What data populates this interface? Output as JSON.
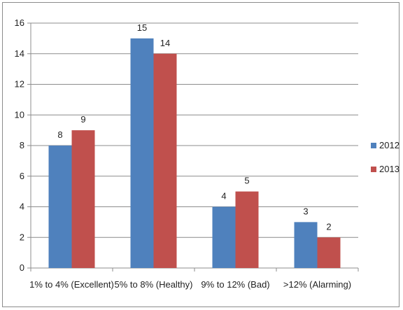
{
  "chart_data": {
    "type": "bar",
    "categories": [
      "1% to 4% (Excellent)",
      "5% to 8% (Healthy)",
      "9% to 12% (Bad)",
      ">12% (Alarming)"
    ],
    "series": [
      {
        "name": "2012",
        "values": [
          8,
          15,
          4,
          3
        ],
        "color": "#4f81bd"
      },
      {
        "name": "2013",
        "values": [
          9,
          14,
          5,
          2
        ],
        "color": "#c0504d"
      }
    ],
    "y_ticks": [
      0,
      2,
      4,
      6,
      8,
      10,
      12,
      14,
      16
    ],
    "ylim": [
      0,
      16
    ],
    "title": "",
    "xlabel": "",
    "ylabel": "",
    "grid": true,
    "legend_position": "right",
    "data_labels": true
  }
}
